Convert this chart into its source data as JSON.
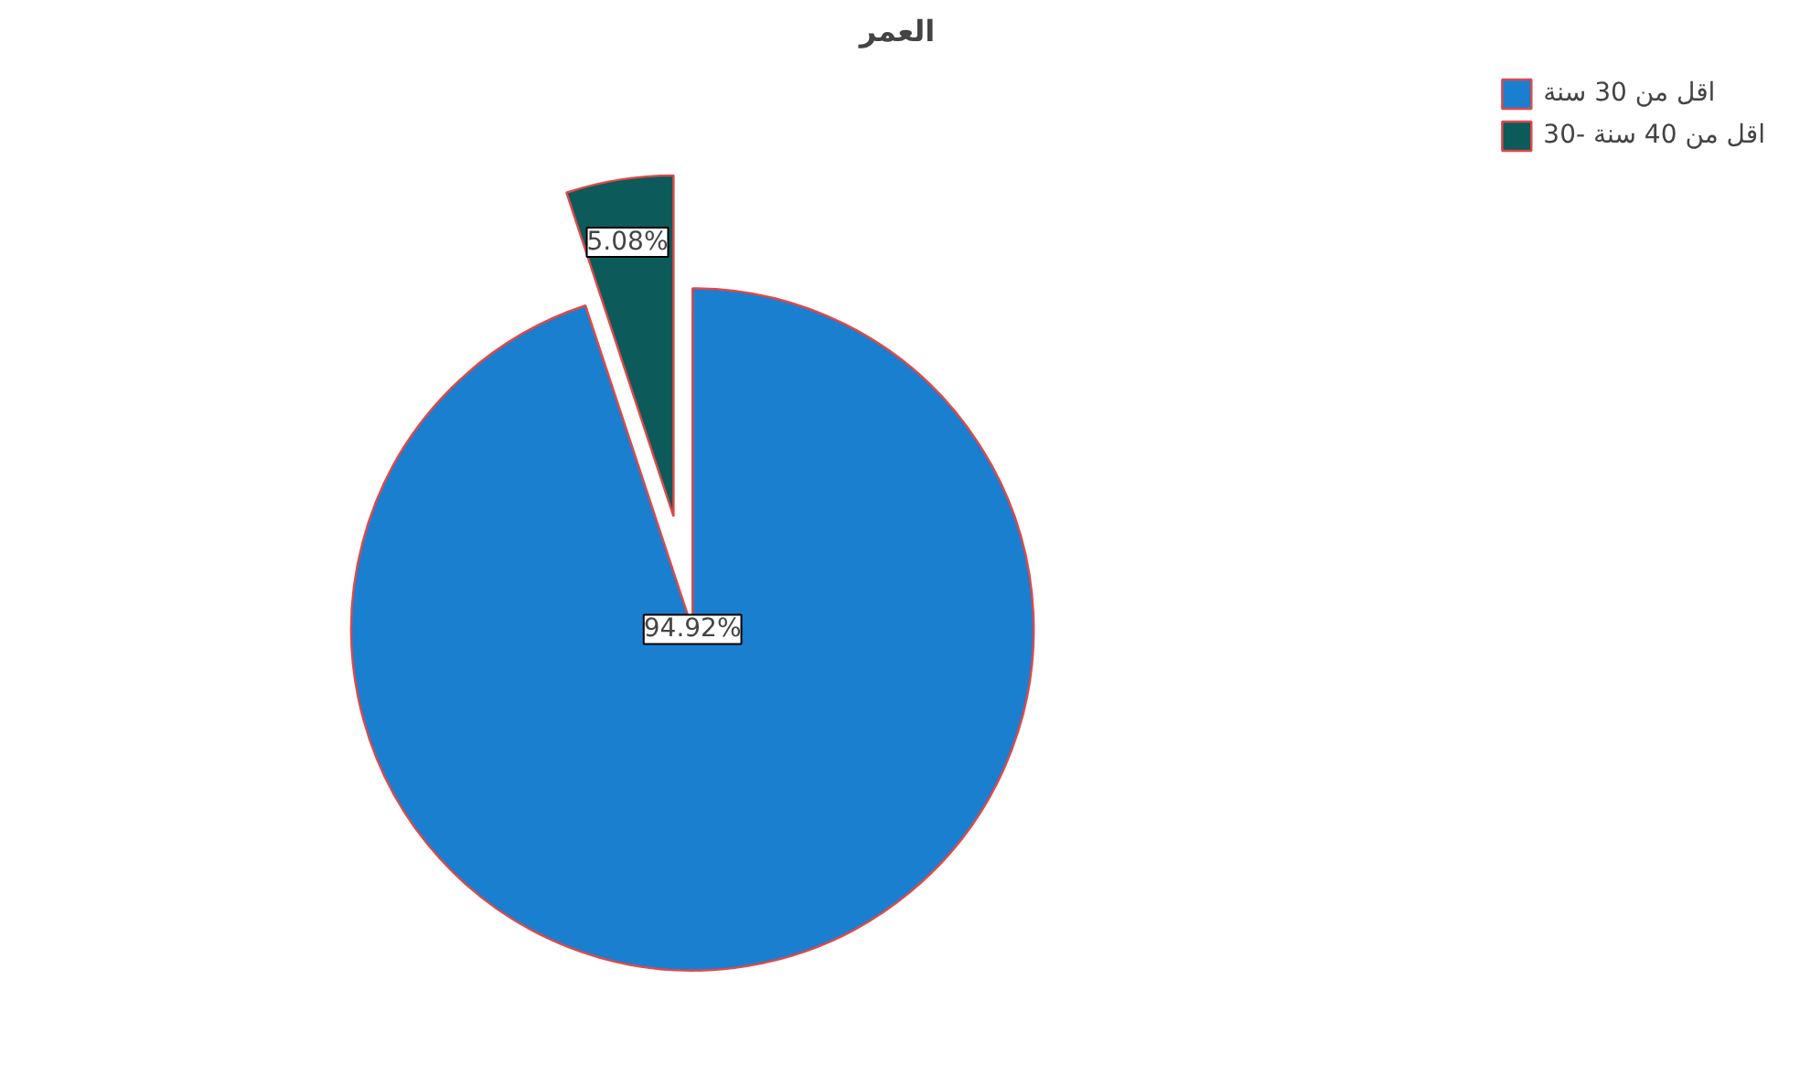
{
  "chart_data": {
    "type": "pie",
    "title": "العمر",
    "categories": [
      "اقل من 30 سنة",
      "30- اقل من 40 سنة"
    ],
    "values": [
      94.92,
      5.08
    ],
    "colors": [
      "#1a7fcf",
      "#0d5a5a"
    ],
    "value_labels": [
      "94.92%",
      "5.08%"
    ],
    "legend": "top right"
  }
}
